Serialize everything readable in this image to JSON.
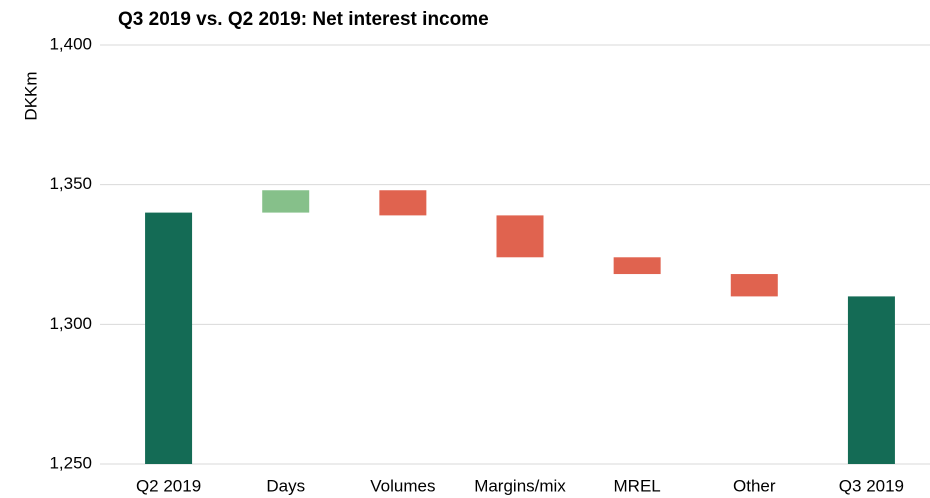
{
  "chart_data": {
    "type": "waterfall",
    "title": "Q3 2019 vs. Q2 2019: Net interest income",
    "y_label": "DKKm",
    "categories": [
      "Q2 2019",
      "Days",
      "Volumes",
      "Margins/mix",
      "MREL",
      "Other",
      "Q3 2019"
    ],
    "values": [
      1340,
      8,
      -9,
      -15,
      -6,
      -8,
      1310
    ],
    "measure": [
      "absolute",
      "relative",
      "relative",
      "relative",
      "relative",
      "relative",
      "absolute"
    ],
    "colors": {
      "total": "#146b55",
      "increase": "#86c08a",
      "decrease": "#e0634f"
    },
    "ylim": [
      1250,
      1400
    ],
    "yticks": [
      {
        "value": 1250,
        "label": "1,250"
      },
      {
        "value": 1300,
        "label": "1,300"
      },
      {
        "value": 1350,
        "label": "1,350"
      },
      {
        "value": 1400,
        "label": "1,400"
      }
    ],
    "grid": true
  }
}
